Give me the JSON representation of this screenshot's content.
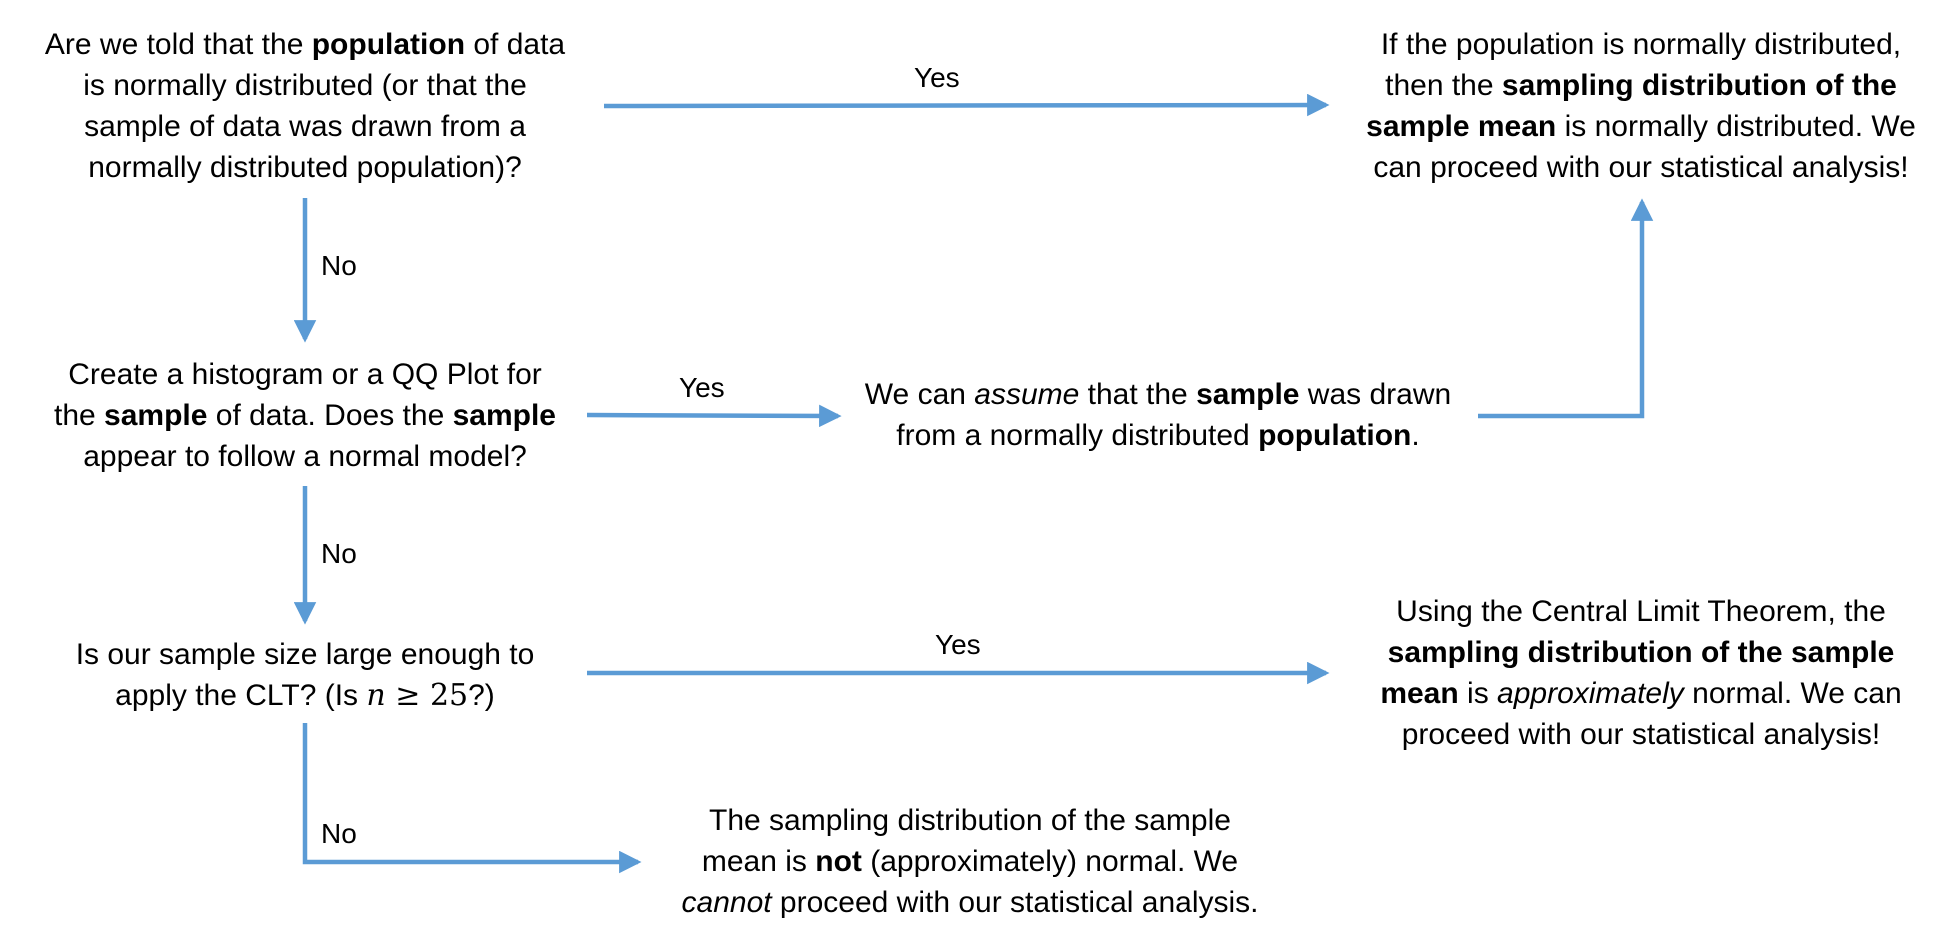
{
  "nodes": {
    "q_population": {
      "l1": [
        "Are we told that the ",
        "population",
        " of data"
      ],
      "l2": "is normally distributed (or that the",
      "l3": "sample of data was drawn from a",
      "l4": "normally distributed population)?"
    },
    "r_sampling_normal": {
      "l1": "If the population is normally distributed,",
      "l2": [
        "then the ",
        "sampling distribution of the"
      ],
      "l3": [
        "sample mean",
        " is normally distributed. We"
      ],
      "l4": "can proceed with our statistical analysis!"
    },
    "q_histogram": {
      "l1": "Create a histogram or a QQ Plot for",
      "l2": [
        "the ",
        "sample",
        " of data. Does the ",
        "sample"
      ],
      "l3": "appear to follow a normal model?"
    },
    "r_assume": {
      "l1": [
        "We can ",
        "assume",
        " that the ",
        "sample",
        " was drawn"
      ],
      "l2": [
        "from a normally distributed ",
        "population",
        "."
      ]
    },
    "q_clt": {
      "l1": "Is our sample size large enough to",
      "l2": [
        "apply the CLT? (Is ",
        "n",
        " ≥ 25",
        "?)"
      ]
    },
    "r_clt": {
      "l1": "Using the Central Limit Theorem, the",
      "l2": "sampling distribution of the sample",
      "l3": [
        "mean",
        " is ",
        "approximately",
        " normal. We can"
      ],
      "l4": "proceed with our statistical analysis!"
    },
    "r_not_normal": {
      "l1": "The sampling distribution of the sample",
      "l2": [
        "mean is ",
        "not",
        " (approximately) normal. We"
      ],
      "l3": [
        "cannot",
        " proceed with our statistical analysis."
      ]
    }
  },
  "edges": {
    "yes_1": "Yes",
    "no_1": "No",
    "yes_2": "Yes",
    "no_2": "No",
    "yes_3": "Yes",
    "no_3": "No"
  },
  "colors": {
    "arrow": "#5b9bd5",
    "text": "#000000",
    "background": "#ffffff"
  }
}
